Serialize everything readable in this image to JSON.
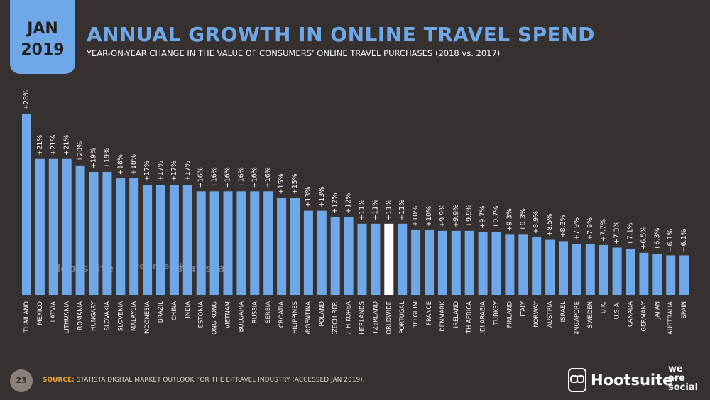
{
  "header": {
    "month": "JAN",
    "year": "2019",
    "title": "ANNUAL GROWTH IN ONLINE TRAVEL SPEND",
    "subtitle": "YEAR-ON-YEAR CHANGE IN THE VALUE OF CONSUMERS’ ONLINE TRAVEL PURCHASES (2018 vs. 2017)"
  },
  "footer": {
    "page_number": "23",
    "source_label": "SOURCE:",
    "source_text": "STATISTA DIGITAL MARKET OUTLOOK FOR THE E-TRAVEL INDUSTRY (ACCESSED JAN 2019).",
    "brand": "Hootsuite",
    "brand_tm": "™",
    "partner": [
      "we",
      "are",
      "social"
    ],
    "watermark_hootsuite": "Hootsuite",
    "watermark_was": "we are social",
    "watermark_statista": "statista"
  },
  "colors": {
    "background": "#36302e",
    "bar": "#6fa8e8",
    "highlight_bar": "#ffffff",
    "accent": "#6fa8e8",
    "source_label": "#e8a03a"
  },
  "chart_data": {
    "type": "bar",
    "categories": [
      "THAILAND",
      "MEXICO",
      "LATVIA",
      "LITHUANIA",
      "ROMANIA",
      "HUNGARY",
      "SLOVAKIA",
      "SLOVENIA",
      "MALAYSIA",
      "INDONESIA",
      "BRAZIL",
      "CHINA",
      "INDIA",
      "ESTONIA",
      "HONG KONG",
      "VIETNAM",
      "BULGARIA",
      "RUSSIA",
      "SERBIA",
      "CROATIA",
      "PHILIPPINES",
      "ARGENTINA",
      "POLAND",
      "CZECH REP.",
      "SOUTH KOREA",
      "NETHERLANDS",
      "SWITZERLAND",
      "WORLDWIDE",
      "PORTUGAL",
      "BELGIUM",
      "FRANCE",
      "DENMARK",
      "IRELAND",
      "SOUTH AFRICA",
      "SAUDI ARABIA",
      "TURKEY",
      "FINLAND",
      "ITALY",
      "NORWAY",
      "AUSTRIA",
      "ISRAEL",
      "SINGAPORE",
      "SWEDEN",
      "U.K.",
      "U.S.A.",
      "CANADA",
      "GERMANY",
      "JAPAN",
      "AUSTRALIA",
      "SPAIN"
    ],
    "values": [
      28,
      21,
      21,
      21,
      20,
      19,
      19,
      18,
      18,
      17,
      17,
      17,
      17,
      16,
      16,
      16,
      16,
      16,
      16,
      15,
      15,
      13,
      13,
      12,
      12,
      11,
      11,
      11,
      11,
      10,
      10,
      9.9,
      9.9,
      9.9,
      9.7,
      9.7,
      9.3,
      9.3,
      8.9,
      8.5,
      8.3,
      7.9,
      7.9,
      7.7,
      7.3,
      7.1,
      6.5,
      6.3,
      6.1,
      6.1
    ],
    "labels": [
      "+28%",
      "+21%",
      "+21%",
      "+21%",
      "+20%",
      "+19%",
      "+19%",
      "+18%",
      "+18%",
      "+17%",
      "+17%",
      "+17%",
      "+17%",
      "+16%",
      "+16%",
      "+16%",
      "+16%",
      "+16%",
      "+16%",
      "+15%",
      "+15%",
      "+13%",
      "+13%",
      "+12%",
      "+12%",
      "+11%",
      "+11%",
      "+11%",
      "+11%",
      "+10%",
      "+10%",
      "+9.9%",
      "+9.9%",
      "+9.9%",
      "+9.7%",
      "+9.7%",
      "+9.3%",
      "+9.3%",
      "+8.9%",
      "+8.5%",
      "+8.3%",
      "+7.9%",
      "+7.9%",
      "+7.7%",
      "+7.3%",
      "+7.1%",
      "+6.5%",
      "+6.3%",
      "+6.1%",
      "+6.1%"
    ],
    "highlight": "WORLDWIDE",
    "ylim": [
      0,
      28
    ],
    "grid": false,
    "title": "ANNUAL GROWTH IN ONLINE TRAVEL SPEND",
    "xlabel": "",
    "ylabel": ""
  }
}
